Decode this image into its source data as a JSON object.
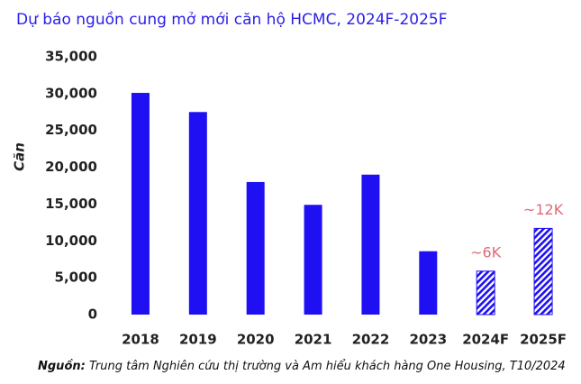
{
  "chart_data": {
    "type": "bar",
    "title": "Dự báo nguồn cung mở mới  căn hộ HCMC, 2024F-2025F",
    "y_label": "Căn",
    "categories": [
      "2018",
      "2019",
      "2020",
      "2021",
      "2022",
      "2023",
      "2024F",
      "2025F"
    ],
    "values": [
      30100,
      27500,
      18000,
      14900,
      19000,
      8600,
      5900,
      11700
    ],
    "value_labels": [
      null,
      null,
      null,
      null,
      null,
      null,
      "~6K",
      "~12K"
    ],
    "hatched": [
      false,
      false,
      false,
      false,
      false,
      false,
      true,
      true
    ],
    "color": "#1e10f2",
    "label_color": "#e06a78",
    "ylim": [
      0,
      35000
    ],
    "yticks": [
      0,
      {
        "value": 5000,
        "label": "5,000"
      },
      {
        "value": 10000,
        "label": "10,000"
      },
      {
        "value": 15000,
        "label": "15,000"
      },
      {
        "value": 20000,
        "label": "20,000"
      },
      {
        "value": 25000,
        "label": "25,000"
      },
      {
        "value": 30000,
        "label": "30,000"
      },
      {
        "value": 35000,
        "label": "35,000"
      }
    ],
    "grid": false,
    "source_label": "Nguồn:",
    "source": " Trung tâm Nghiên cứu thị trường và Am hiểu khách hàng One Housing, T10/2024"
  }
}
